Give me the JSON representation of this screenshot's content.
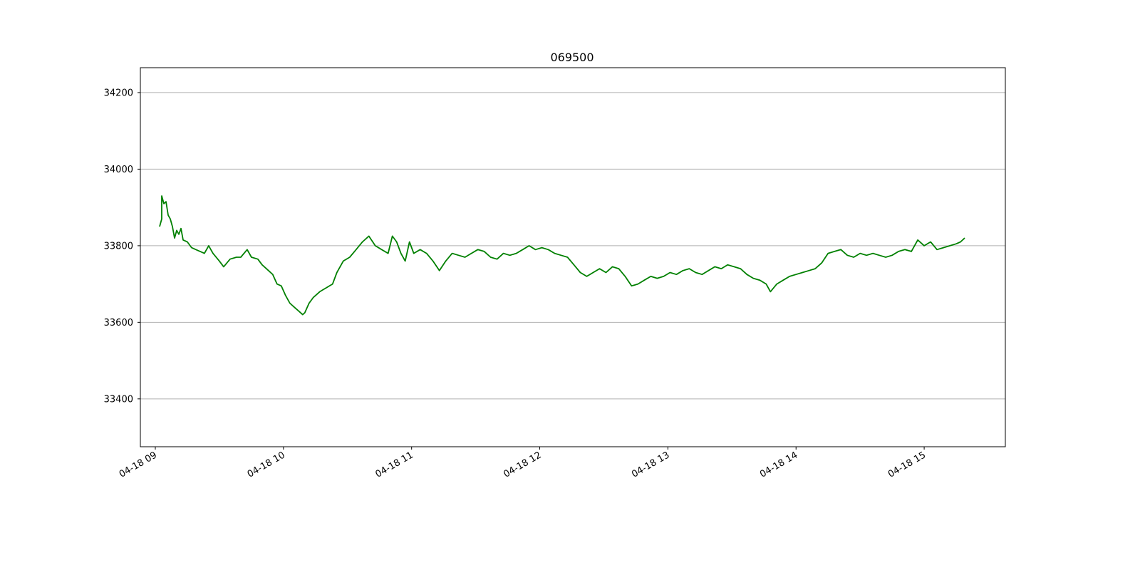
{
  "chart_data": {
    "type": "line",
    "title": "069500",
    "xlabel": "",
    "ylabel": "",
    "x_ticks": [
      "04-18 09",
      "04-18 10",
      "04-18 11",
      "04-18 12",
      "04-18 13",
      "04-18 14",
      "04-18 15"
    ],
    "x_tick_times": [
      "09:00",
      "10:00",
      "11:00",
      "12:00",
      "13:00",
      "14:00",
      "15:00"
    ],
    "xlim": [
      "08:53",
      "15:38"
    ],
    "y_ticks": [
      33400,
      33600,
      33800,
      34000,
      34200
    ],
    "ylim": [
      33275,
      34265
    ],
    "grid": "horizontal",
    "legend": "none",
    "colors": {
      "line": "#008000",
      "grid": "#b0b0b0"
    },
    "series": [
      {
        "values": [
          [
            "09:02",
            33850
          ],
          [
            "09:03",
            33870
          ],
          [
            "09:03",
            33930
          ],
          [
            "09:04",
            33910
          ],
          [
            "09:05",
            33915
          ],
          [
            "09:06",
            33880
          ],
          [
            "09:07",
            33870
          ],
          [
            "09:08",
            33850
          ],
          [
            "09:09",
            33820
          ],
          [
            "09:10",
            33840
          ],
          [
            "09:11",
            33830
          ],
          [
            "09:12",
            33845
          ],
          [
            "09:13",
            33815
          ],
          [
            "09:15",
            33810
          ],
          [
            "09:17",
            33795
          ],
          [
            "09:19",
            33790
          ],
          [
            "09:21",
            33785
          ],
          [
            "09:23",
            33780
          ],
          [
            "09:25",
            33800
          ],
          [
            "09:27",
            33780
          ],
          [
            "09:30",
            33760
          ],
          [
            "09:32",
            33745
          ],
          [
            "09:35",
            33765
          ],
          [
            "09:38",
            33770
          ],
          [
            "09:40",
            33770
          ],
          [
            "09:43",
            33790
          ],
          [
            "09:45",
            33770
          ],
          [
            "09:48",
            33765
          ],
          [
            "09:50",
            33750
          ],
          [
            "09:53",
            33735
          ],
          [
            "09:55",
            33725
          ],
          [
            "09:57",
            33700
          ],
          [
            "09:59",
            33695
          ],
          [
            "10:01",
            33670
          ],
          [
            "10:03",
            33650
          ],
          [
            "10:05",
            33640
          ],
          [
            "10:07",
            33630
          ],
          [
            "10:09",
            33620
          ],
          [
            "10:10",
            33625
          ],
          [
            "10:12",
            33650
          ],
          [
            "10:14",
            33665
          ],
          [
            "10:17",
            33680
          ],
          [
            "10:20",
            33690
          ],
          [
            "10:23",
            33700
          ],
          [
            "10:25",
            33730
          ],
          [
            "10:28",
            33760
          ],
          [
            "10:31",
            33770
          ],
          [
            "10:34",
            33790
          ],
          [
            "10:37",
            33810
          ],
          [
            "10:40",
            33825
          ],
          [
            "10:43",
            33800
          ],
          [
            "10:46",
            33790
          ],
          [
            "10:49",
            33780
          ],
          [
            "10:51",
            33825
          ],
          [
            "10:53",
            33810
          ],
          [
            "10:55",
            33780
          ],
          [
            "10:57",
            33760
          ],
          [
            "10:59",
            33810
          ],
          [
            "11:01",
            33780
          ],
          [
            "11:04",
            33790
          ],
          [
            "11:07",
            33780
          ],
          [
            "11:10",
            33760
          ],
          [
            "11:13",
            33735
          ],
          [
            "11:16",
            33760
          ],
          [
            "11:19",
            33780
          ],
          [
            "11:22",
            33775
          ],
          [
            "11:25",
            33770
          ],
          [
            "11:28",
            33780
          ],
          [
            "11:31",
            33790
          ],
          [
            "11:34",
            33785
          ],
          [
            "11:37",
            33770
          ],
          [
            "11:40",
            33765
          ],
          [
            "11:43",
            33780
          ],
          [
            "11:46",
            33775
          ],
          [
            "11:49",
            33780
          ],
          [
            "11:52",
            33790
          ],
          [
            "11:55",
            33800
          ],
          [
            "11:58",
            33790
          ],
          [
            "12:01",
            33795
          ],
          [
            "12:04",
            33790
          ],
          [
            "12:07",
            33780
          ],
          [
            "12:10",
            33775
          ],
          [
            "12:13",
            33770
          ],
          [
            "12:16",
            33750
          ],
          [
            "12:19",
            33730
          ],
          [
            "12:22",
            33720
          ],
          [
            "12:25",
            33730
          ],
          [
            "12:28",
            33740
          ],
          [
            "12:31",
            33730
          ],
          [
            "12:34",
            33745
          ],
          [
            "12:37",
            33740
          ],
          [
            "12:40",
            33720
          ],
          [
            "12:43",
            33695
          ],
          [
            "12:46",
            33700
          ],
          [
            "12:49",
            33710
          ],
          [
            "12:52",
            33720
          ],
          [
            "12:55",
            33715
          ],
          [
            "12:58",
            33720
          ],
          [
            "13:01",
            33730
          ],
          [
            "13:04",
            33725
          ],
          [
            "13:07",
            33735
          ],
          [
            "13:10",
            33740
          ],
          [
            "13:13",
            33730
          ],
          [
            "13:16",
            33725
          ],
          [
            "13:19",
            33735
          ],
          [
            "13:22",
            33745
          ],
          [
            "13:25",
            33740
          ],
          [
            "13:28",
            33750
          ],
          [
            "13:31",
            33745
          ],
          [
            "13:34",
            33740
          ],
          [
            "13:37",
            33725
          ],
          [
            "13:40",
            33715
          ],
          [
            "13:43",
            33710
          ],
          [
            "13:46",
            33700
          ],
          [
            "13:48",
            33680
          ],
          [
            "13:51",
            33700
          ],
          [
            "13:54",
            33710
          ],
          [
            "13:57",
            33720
          ],
          [
            "14:00",
            33725
          ],
          [
            "14:03",
            33730
          ],
          [
            "14:06",
            33735
          ],
          [
            "14:09",
            33740
          ],
          [
            "14:12",
            33755
          ],
          [
            "14:15",
            33780
          ],
          [
            "14:18",
            33785
          ],
          [
            "14:21",
            33790
          ],
          [
            "14:24",
            33775
          ],
          [
            "14:27",
            33770
          ],
          [
            "14:30",
            33780
          ],
          [
            "14:33",
            33775
          ],
          [
            "14:36",
            33780
          ],
          [
            "14:39",
            33775
          ],
          [
            "14:42",
            33770
          ],
          [
            "14:45",
            33775
          ],
          [
            "14:48",
            33785
          ],
          [
            "14:51",
            33790
          ],
          [
            "14:54",
            33785
          ],
          [
            "14:57",
            33815
          ],
          [
            "15:00",
            33800
          ],
          [
            "15:03",
            33810
          ],
          [
            "15:06",
            33790
          ],
          [
            "15:09",
            33795
          ],
          [
            "15:12",
            33800
          ],
          [
            "15:15",
            33805
          ],
          [
            "15:17",
            33810
          ],
          [
            "15:19",
            33820
          ]
        ]
      }
    ]
  }
}
